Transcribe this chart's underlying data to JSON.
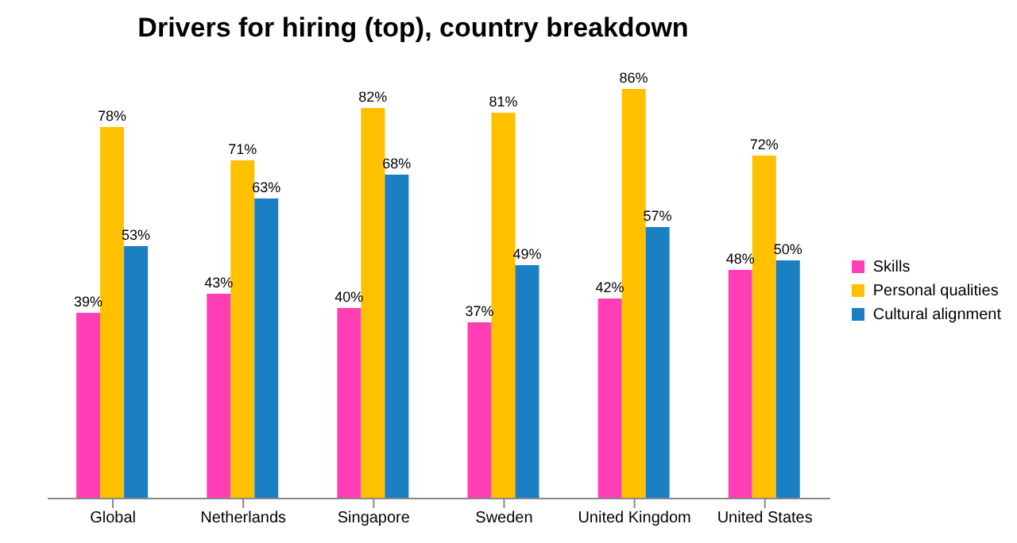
{
  "chart_data": {
    "type": "bar",
    "title": "Drivers for hiring (top), country breakdown",
    "categories": [
      "Global",
      "Netherlands",
      "Singapore",
      "Sweden",
      "United Kingdom",
      "United States"
    ],
    "series": [
      {
        "name": "Skills",
        "color": "#ff3eb5",
        "values": [
          39,
          43,
          40,
          37,
          42,
          48
        ],
        "value_labels": [
          "39%",
          "43%",
          "40%",
          "37%",
          "42%",
          "48%"
        ]
      },
      {
        "name": "Personal qualities",
        "color": "#ffc000",
        "values": [
          78,
          71,
          82,
          81,
          86,
          72
        ],
        "value_labels": [
          "78%",
          "71%",
          "82%",
          "81%",
          "86%",
          "72%"
        ]
      },
      {
        "name": "Cultural alignment",
        "color": "#1b7fc4",
        "values": [
          53,
          63,
          68,
          49,
          57,
          50
        ],
        "value_labels": [
          "53%",
          "63%",
          "68%",
          "49%",
          "57%",
          "50%"
        ]
      }
    ],
    "legend": "right",
    "grid": false
  }
}
